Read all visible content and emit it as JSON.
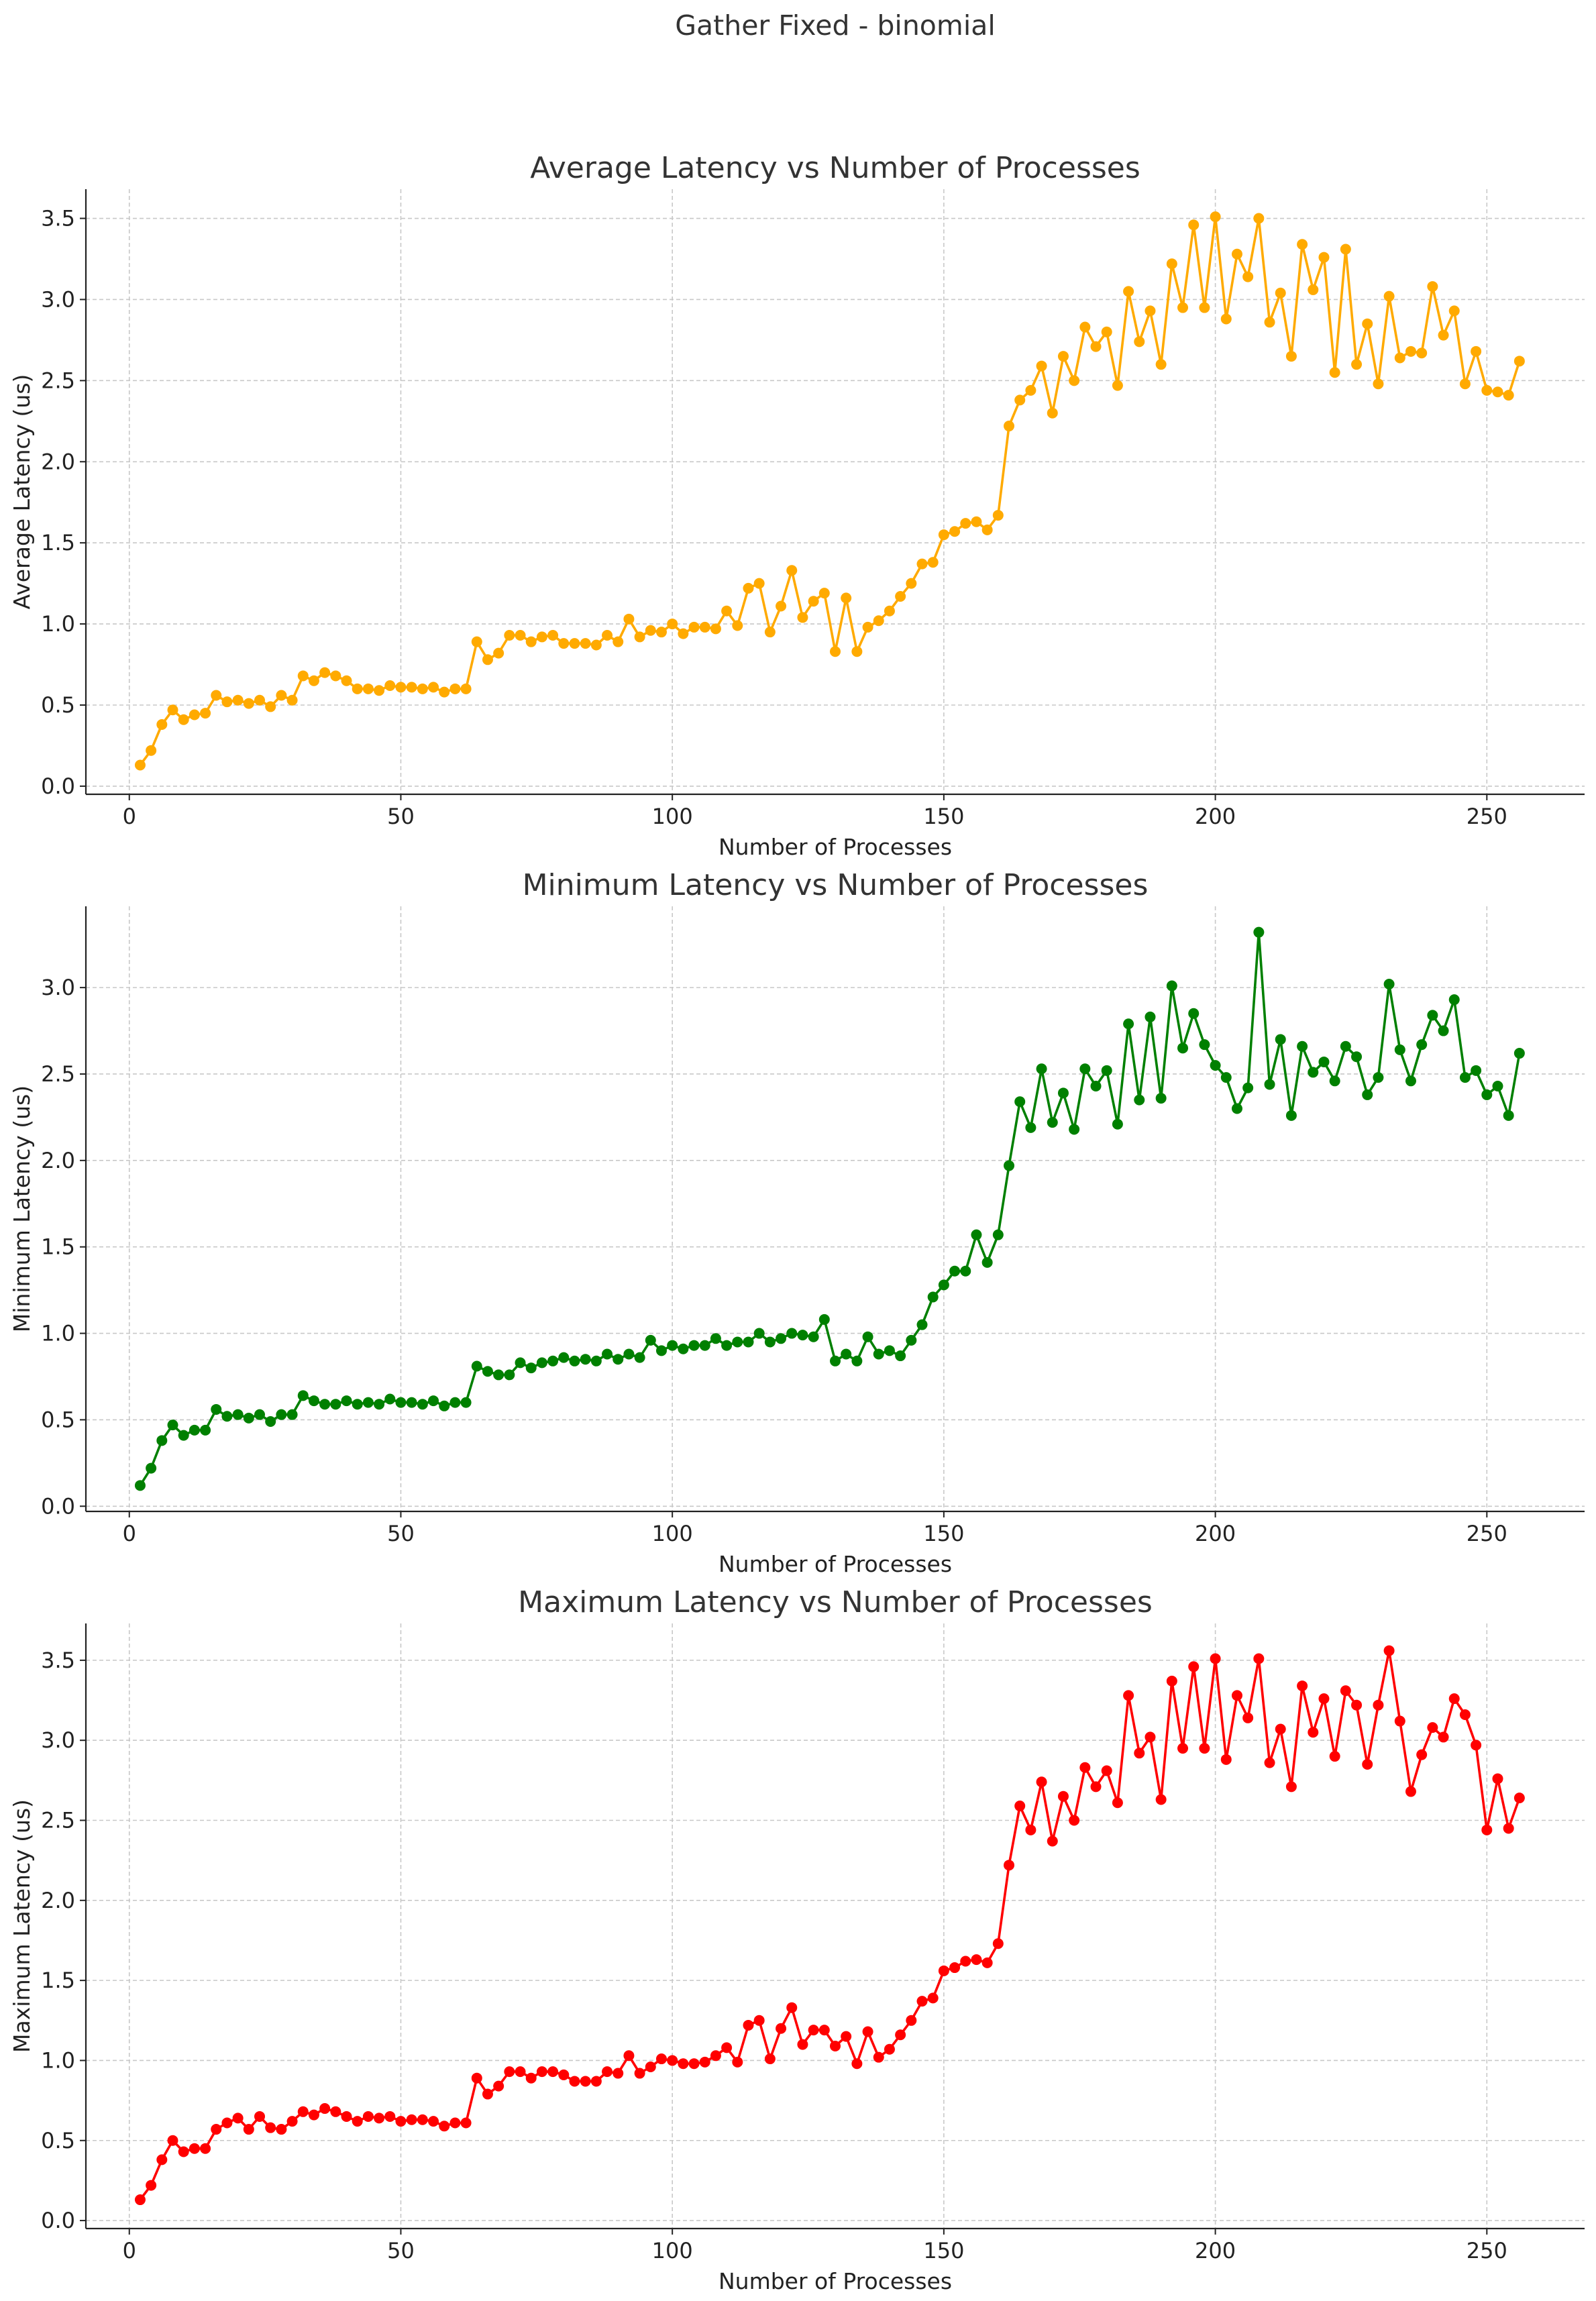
{
  "figure": {
    "title": "Gather Fixed - binomial"
  },
  "chart_data": [
    {
      "type": "line",
      "title": "Average Latency vs Number of Processes",
      "xlabel": "Number of Processes",
      "ylabel": "Average Latency (us)",
      "color": "#ffaa00",
      "grid": true,
      "xlim": [
        -8,
        268
      ],
      "ylim": [
        -0.05,
        3.68
      ],
      "xticks": [
        0,
        50,
        100,
        150,
        200,
        250
      ],
      "yticks": [
        0.0,
        0.5,
        1.0,
        1.5,
        2.0,
        2.5,
        3.0,
        3.5
      ],
      "x": [
        2,
        4,
        6,
        8,
        10,
        12,
        14,
        16,
        18,
        20,
        22,
        24,
        26,
        28,
        30,
        32,
        34,
        36,
        38,
        40,
        42,
        44,
        46,
        48,
        50,
        52,
        54,
        56,
        58,
        60,
        62,
        64,
        66,
        68,
        70,
        72,
        74,
        76,
        78,
        80,
        82,
        84,
        86,
        88,
        90,
        92,
        94,
        96,
        98,
        100,
        102,
        104,
        106,
        108,
        110,
        112,
        114,
        116,
        118,
        120,
        122,
        124,
        126,
        128,
        130,
        132,
        134,
        136,
        138,
        140,
        142,
        144,
        146,
        148,
        150,
        152,
        154,
        156,
        158,
        160,
        162,
        164,
        166,
        168,
        170,
        172,
        174,
        176,
        178,
        180,
        182,
        184,
        186,
        188,
        190,
        192,
        194,
        196,
        198,
        200,
        202,
        204,
        206,
        208,
        210,
        212,
        214,
        216,
        218,
        220,
        222,
        224,
        226,
        228,
        230,
        232,
        234,
        236,
        238,
        240,
        242,
        244,
        246,
        248,
        250,
        252,
        254,
        256
      ],
      "y": [
        0.13,
        0.22,
        0.38,
        0.47,
        0.41,
        0.44,
        0.45,
        0.56,
        0.52,
        0.53,
        0.51,
        0.53,
        0.49,
        0.56,
        0.53,
        0.68,
        0.65,
        0.7,
        0.68,
        0.65,
        0.6,
        0.6,
        0.59,
        0.62,
        0.61,
        0.61,
        0.6,
        0.61,
        0.58,
        0.6,
        0.6,
        0.89,
        0.78,
        0.82,
        0.93,
        0.93,
        0.89,
        0.92,
        0.93,
        0.88,
        0.88,
        0.88,
        0.87,
        0.93,
        0.89,
        1.03,
        0.92,
        0.96,
        0.95,
        1.0,
        0.94,
        0.98,
        0.98,
        0.97,
        1.08,
        0.99,
        1.22,
        1.25,
        0.95,
        1.11,
        1.33,
        1.04,
        1.14,
        1.19,
        0.83,
        1.16,
        0.83,
        0.98,
        1.02,
        1.08,
        1.17,
        1.25,
        1.37,
        1.38,
        1.55,
        1.57,
        1.62,
        1.63,
        1.58,
        1.67,
        2.22,
        2.38,
        2.44,
        2.59,
        2.3,
        2.65,
        2.5,
        2.83,
        2.71,
        2.8,
        2.47,
        3.05,
        2.74,
        2.93,
        2.6,
        3.22,
        2.95,
        3.46,
        2.95,
        3.51,
        2.88,
        3.28,
        3.14,
        3.5,
        2.86,
        3.04,
        2.65,
        3.34,
        3.06,
        3.26,
        2.55,
        3.31,
        2.6,
        2.85,
        2.48,
        3.02,
        2.64,
        2.68,
        2.67,
        3.08,
        2.78,
        2.93,
        2.48,
        2.68,
        2.44,
        2.43,
        2.41,
        2.62
      ]
    },
    {
      "type": "line",
      "title": "Minimum Latency vs Number of Processes",
      "xlabel": "Number of Processes",
      "ylabel": "Minimum Latency (us)",
      "color": "#008000",
      "grid": true,
      "xlim": [
        -8,
        268
      ],
      "ylim": [
        -0.03,
        3.47
      ],
      "xticks": [
        0,
        50,
        100,
        150,
        200,
        250
      ],
      "yticks": [
        0.0,
        0.5,
        1.0,
        1.5,
        2.0,
        2.5,
        3.0
      ],
      "x": [
        2,
        4,
        6,
        8,
        10,
        12,
        14,
        16,
        18,
        20,
        22,
        24,
        26,
        28,
        30,
        32,
        34,
        36,
        38,
        40,
        42,
        44,
        46,
        48,
        50,
        52,
        54,
        56,
        58,
        60,
        62,
        64,
        66,
        68,
        70,
        72,
        74,
        76,
        78,
        80,
        82,
        84,
        86,
        88,
        90,
        92,
        94,
        96,
        98,
        100,
        102,
        104,
        106,
        108,
        110,
        112,
        114,
        116,
        118,
        120,
        122,
        124,
        126,
        128,
        130,
        132,
        134,
        136,
        138,
        140,
        142,
        144,
        146,
        148,
        150,
        152,
        154,
        156,
        158,
        160,
        162,
        164,
        166,
        168,
        170,
        172,
        174,
        176,
        178,
        180,
        182,
        184,
        186,
        188,
        190,
        192,
        194,
        196,
        198,
        200,
        202,
        204,
        206,
        208,
        210,
        212,
        214,
        216,
        218,
        220,
        222,
        224,
        226,
        228,
        230,
        232,
        234,
        236,
        238,
        240,
        242,
        244,
        246,
        248,
        250,
        252,
        254,
        256
      ],
      "y": [
        0.12,
        0.22,
        0.38,
        0.47,
        0.41,
        0.44,
        0.44,
        0.56,
        0.52,
        0.53,
        0.51,
        0.53,
        0.49,
        0.53,
        0.53,
        0.64,
        0.61,
        0.59,
        0.59,
        0.61,
        0.59,
        0.6,
        0.59,
        0.62,
        0.6,
        0.6,
        0.59,
        0.61,
        0.58,
        0.6,
        0.6,
        0.81,
        0.78,
        0.76,
        0.76,
        0.83,
        0.8,
        0.83,
        0.84,
        0.86,
        0.84,
        0.85,
        0.84,
        0.88,
        0.85,
        0.88,
        0.86,
        0.96,
        0.9,
        0.93,
        0.91,
        0.93,
        0.93,
        0.97,
        0.93,
        0.95,
        0.95,
        1.0,
        0.95,
        0.97,
        1.0,
        0.99,
        0.98,
        1.08,
        0.84,
        0.88,
        0.84,
        0.98,
        0.88,
        0.9,
        0.87,
        0.96,
        1.05,
        1.21,
        1.28,
        1.36,
        1.36,
        1.57,
        1.41,
        1.57,
        1.97,
        2.34,
        2.19,
        2.53,
        2.22,
        2.39,
        2.18,
        2.53,
        2.43,
        2.52,
        2.21,
        2.79,
        2.35,
        2.83,
        2.36,
        3.01,
        2.65,
        2.85,
        2.67,
        2.55,
        2.48,
        2.3,
        2.42,
        3.32,
        2.44,
        2.7,
        2.26,
        2.66,
        2.51,
        2.57,
        2.46,
        2.66,
        2.6,
        2.38,
        2.48,
        3.02,
        2.64,
        2.46,
        2.67,
        2.84,
        2.75,
        2.93,
        2.48,
        2.52,
        2.38,
        2.43,
        2.26,
        2.62
      ]
    },
    {
      "type": "line",
      "title": "Maximum Latency vs Number of Processes",
      "xlabel": "Number of Processes",
      "ylabel": "Maximum Latency (us)",
      "color": "#ff0000",
      "grid": true,
      "xlim": [
        -8,
        268
      ],
      "ylim": [
        -0.05,
        3.73
      ],
      "xticks": [
        0,
        50,
        100,
        150,
        200,
        250
      ],
      "yticks": [
        0.0,
        0.5,
        1.0,
        1.5,
        2.0,
        2.5,
        3.0,
        3.5
      ],
      "x": [
        2,
        4,
        6,
        8,
        10,
        12,
        14,
        16,
        18,
        20,
        22,
        24,
        26,
        28,
        30,
        32,
        34,
        36,
        38,
        40,
        42,
        44,
        46,
        48,
        50,
        52,
        54,
        56,
        58,
        60,
        62,
        64,
        66,
        68,
        70,
        72,
        74,
        76,
        78,
        80,
        82,
        84,
        86,
        88,
        90,
        92,
        94,
        96,
        98,
        100,
        102,
        104,
        106,
        108,
        110,
        112,
        114,
        116,
        118,
        120,
        122,
        124,
        126,
        128,
        130,
        132,
        134,
        136,
        138,
        140,
        142,
        144,
        146,
        148,
        150,
        152,
        154,
        156,
        158,
        160,
        162,
        164,
        166,
        168,
        170,
        172,
        174,
        176,
        178,
        180,
        182,
        184,
        186,
        188,
        190,
        192,
        194,
        196,
        198,
        200,
        202,
        204,
        206,
        208,
        210,
        212,
        214,
        216,
        218,
        220,
        222,
        224,
        226,
        228,
        230,
        232,
        234,
        236,
        238,
        240,
        242,
        244,
        246,
        248,
        250,
        252,
        254,
        256
      ],
      "y": [
        0.13,
        0.22,
        0.38,
        0.5,
        0.43,
        0.45,
        0.45,
        0.57,
        0.61,
        0.64,
        0.57,
        0.65,
        0.58,
        0.57,
        0.62,
        0.68,
        0.66,
        0.7,
        0.68,
        0.65,
        0.62,
        0.65,
        0.64,
        0.65,
        0.62,
        0.63,
        0.63,
        0.62,
        0.59,
        0.61,
        0.61,
        0.89,
        0.79,
        0.84,
        0.93,
        0.93,
        0.89,
        0.93,
        0.93,
        0.91,
        0.87,
        0.87,
        0.87,
        0.93,
        0.92,
        1.03,
        0.92,
        0.96,
        1.01,
        1.0,
        0.98,
        0.98,
        0.99,
        1.03,
        1.08,
        0.99,
        1.22,
        1.25,
        1.01,
        1.2,
        1.33,
        1.1,
        1.19,
        1.19,
        1.09,
        1.15,
        0.98,
        1.18,
        1.02,
        1.07,
        1.16,
        1.25,
        1.37,
        1.39,
        1.56,
        1.58,
        1.62,
        1.63,
        1.61,
        1.73,
        2.22,
        2.59,
        2.44,
        2.74,
        2.37,
        2.65,
        2.5,
        2.83,
        2.71,
        2.81,
        2.61,
        3.28,
        2.92,
        3.02,
        2.63,
        3.37,
        2.95,
        3.46,
        2.95,
        3.51,
        2.88,
        3.28,
        3.14,
        3.51,
        2.86,
        3.07,
        2.71,
        3.34,
        3.05,
        3.26,
        2.9,
        3.31,
        3.22,
        2.85,
        3.22,
        3.56,
        3.12,
        2.68,
        2.91,
        3.08,
        3.02,
        3.26,
        3.16,
        2.97,
        2.44,
        2.76,
        2.45,
        2.64
      ]
    }
  ]
}
